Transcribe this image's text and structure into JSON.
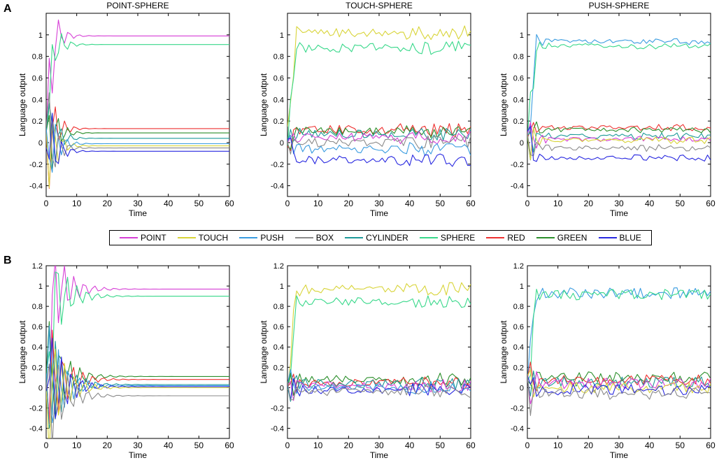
{
  "panel_labels": {
    "a": "A",
    "b": "B"
  },
  "legend": [
    {
      "name": "POINT",
      "color": "#d63fd6"
    },
    {
      "name": "TOUCH",
      "color": "#d8d438"
    },
    {
      "name": "PUSH",
      "color": "#3a9ce0"
    },
    {
      "name": "BOX",
      "color": "#8a8a8a"
    },
    {
      "name": "CYLINDER",
      "color": "#1e9a9a"
    },
    {
      "name": "SPHERE",
      "color": "#38d88a"
    },
    {
      "name": "RED",
      "color": "#ee3030"
    },
    {
      "name": "GREEN",
      "color": "#2b8f2b"
    },
    {
      "name": "BLUE",
      "color": "#2828e0"
    }
  ],
  "chart_data": [
    {
      "id": "A1",
      "type": "line",
      "title": "POINT-SPHERE",
      "xlabel": "Time",
      "ylabel": "Language output",
      "xlim": [
        0,
        60
      ],
      "ylim": [
        -0.5,
        1.2
      ],
      "xticks": [
        "0",
        "10",
        "20",
        "30",
        "40",
        "50",
        "60"
      ],
      "yticks": [
        "-0.4",
        "-0.2",
        "0",
        "0.2",
        "0.4",
        "0.6",
        "0.8",
        "1"
      ],
      "settle": {
        "POINT": 0.99,
        "SPHERE": 0.91,
        "RED": 0.13,
        "GREEN": 0.09,
        "CYLINDER": 0.04,
        "TOUCH": -0.03,
        "PUSH": -0.01,
        "BOX": -0.05,
        "BLUE": -0.08
      },
      "osc_amp": 0.7,
      "osc_decay": 0.38,
      "noise": 0.0,
      "late_noise_start": 60
    },
    {
      "id": "A2",
      "type": "line",
      "title": "TOUCH-SPHERE",
      "xlabel": "Time",
      "ylabel": "Language output",
      "xlim": [
        0,
        60
      ],
      "ylim": [
        -0.5,
        1.2
      ],
      "xticks": [
        "0",
        "10",
        "20",
        "30",
        "40",
        "50",
        "60"
      ],
      "yticks": [
        "-0.4",
        "-0.2",
        "0",
        "0.2",
        "0.4",
        "0.6",
        "0.8",
        "1"
      ],
      "settle": {
        "TOUCH": 1.02,
        "SPHERE": 0.88,
        "RED": 0.12,
        "GREEN": 0.1,
        "CYLINDER": 0.08,
        "POINT": 0.05,
        "BOX": 0.0,
        "PUSH": -0.06,
        "BLUE": -0.16
      },
      "osc_amp": 0.25,
      "osc_decay": 0.6,
      "noise": 0.04,
      "late_noise_start": 37
    },
    {
      "id": "A3",
      "type": "line",
      "title": "PUSH-SPHERE",
      "xlabel": "Time",
      "ylabel": "Language output",
      "xlim": [
        0,
        60
      ],
      "ylim": [
        -0.5,
        1.2
      ],
      "xticks": [
        "0",
        "10",
        "20",
        "30",
        "40",
        "50",
        "60"
      ],
      "yticks": [
        "-0.4",
        "-0.2",
        "0",
        "0.2",
        "0.4",
        "0.6",
        "0.8",
        "1"
      ],
      "settle": {
        "PUSH": 0.94,
        "SPHERE": 0.9,
        "RED": 0.14,
        "GREEN": 0.12,
        "CYLINDER": 0.06,
        "POINT": 0.03,
        "TOUCH": 0.02,
        "BOX": -0.05,
        "BLUE": -0.14
      },
      "osc_amp": 0.35,
      "osc_decay": 0.5,
      "noise": 0.02,
      "late_noise_start": 35
    },
    {
      "id": "B1",
      "type": "line",
      "title": "",
      "xlabel": "Time",
      "ylabel": "Language output",
      "xlim": [
        0,
        60
      ],
      "ylim": [
        -0.5,
        1.2
      ],
      "xticks": [
        "0",
        "10",
        "20",
        "30",
        "40",
        "50",
        "60"
      ],
      "yticks": [
        "-0.4",
        "-0.2",
        "0",
        "0.2",
        "0.4",
        "0.6",
        "0.8",
        "1",
        "1.2"
      ],
      "settle": {
        "POINT": 0.97,
        "SPHERE": 0.9,
        "GREEN": 0.11,
        "RED": 0.08,
        "CYLINDER": 0.03,
        "PUSH": 0.02,
        "BLUE": 0.01,
        "TOUCH": 0.0,
        "BOX": -0.08
      },
      "osc_amp": 0.8,
      "osc_decay": 0.2,
      "noise": 0.0,
      "late_noise_start": 60
    },
    {
      "id": "B2",
      "type": "line",
      "title": "",
      "xlabel": "Time",
      "ylabel": "Language output",
      "xlim": [
        0,
        60
      ],
      "ylim": [
        -0.5,
        1.2
      ],
      "xticks": [
        "0",
        "10",
        "20",
        "30",
        "40",
        "50",
        "60"
      ],
      "yticks": [
        "-0.4",
        "-0.2",
        "0",
        "0.2",
        "0.4",
        "0.6",
        "0.8",
        "1",
        "1.2"
      ],
      "settle": {
        "TOUCH": 0.97,
        "SPHERE": 0.85,
        "GREEN": 0.08,
        "RED": 0.05,
        "CYLINDER": 0.04,
        "POINT": 0.02,
        "PUSH": 0.0,
        "BLUE": -0.02,
        "BOX": -0.04
      },
      "osc_amp": 0.3,
      "osc_decay": 0.5,
      "noise": 0.04,
      "late_noise_start": 38
    },
    {
      "id": "B3",
      "type": "line",
      "title": "",
      "xlabel": "Time",
      "ylabel": "Language output",
      "xlim": [
        0,
        60
      ],
      "ylim": [
        -0.5,
        1.2
      ],
      "xticks": [
        "0",
        "10",
        "20",
        "30",
        "40",
        "50",
        "60"
      ],
      "yticks": [
        "-0.4",
        "-0.2",
        "0",
        "0.2",
        "0.4",
        "0.6",
        "0.8",
        "1",
        "1.2"
      ],
      "settle": {
        "PUSH": 0.93,
        "SPHERE": 0.92,
        "GREEN": 0.1,
        "RED": 0.07,
        "CYLINDER": 0.05,
        "POINT": 0.04,
        "TOUCH": 0.0,
        "BLUE": -0.02,
        "BOX": -0.06
      },
      "osc_amp": 0.35,
      "osc_decay": 0.45,
      "noise": 0.035,
      "late_noise_start": 10
    }
  ]
}
